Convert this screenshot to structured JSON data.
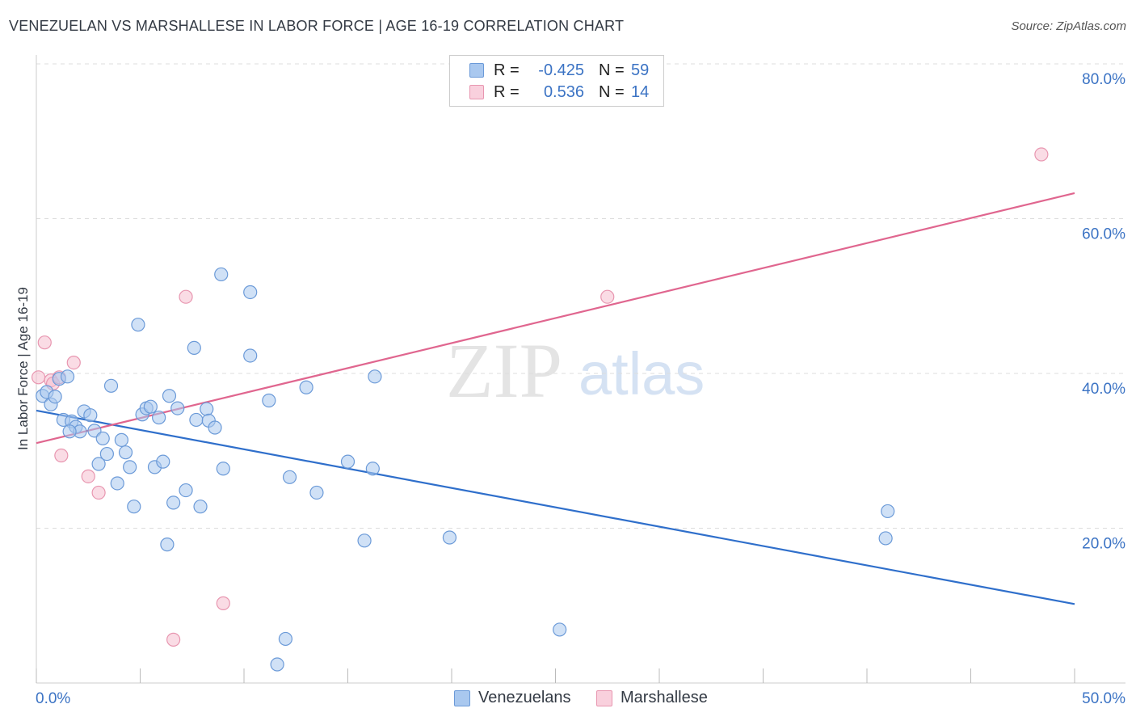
{
  "title": "VENEZUELAN VS MARSHALLESE IN LABOR FORCE | AGE 16-19 CORRELATION CHART",
  "source": "Source: ZipAtlas.com",
  "watermark": {
    "zip": "ZIP",
    "atlas": "atlas"
  },
  "legend": {
    "rows": [
      {
        "r_label": "R =",
        "r_value": "-0.425",
        "n_label": "N =",
        "n_value": "59"
      },
      {
        "r_label": "R =",
        "r_value": "0.536",
        "n_label": "N =",
        "n_value": "14"
      }
    ]
  },
  "bottom_legend": [
    "Venezuelans",
    "Marshallese"
  ],
  "colors": {
    "blue_fill": "#a9c8ef",
    "blue_stroke": "#6b9ad8",
    "blue_line": "#2f6fcb",
    "pink_fill": "#f6bfd0",
    "pink_stroke": "#e896b0",
    "pink_line": "#e0668f",
    "grid": "#dddddd",
    "axis_text": "#3b73c4"
  },
  "chart_data": {
    "type": "scatter",
    "title": "VENEZUELAN VS MARSHALLESE IN LABOR FORCE | AGE 16-19 CORRELATION CHART",
    "xlabel": "",
    "ylabel": "In Labor Force | Age 16-19",
    "xlim": [
      0,
      50
    ],
    "ylim": [
      0,
      80
    ],
    "x_tick_labels": [
      {
        "value": 0,
        "label": "0.0%"
      },
      {
        "value": 50,
        "label": "50.0%"
      }
    ],
    "y_tick_labels": [
      {
        "value": 20,
        "label": "20.0%"
      },
      {
        "value": 40,
        "label": "40.0%"
      },
      {
        "value": 60,
        "label": "60.0%"
      },
      {
        "value": 80,
        "label": "80.0%"
      }
    ],
    "series": [
      {
        "name": "Venezuelans",
        "r": -0.425,
        "n": 59,
        "points": [
          [
            0.3,
            37.1
          ],
          [
            0.5,
            37.6
          ],
          [
            0.7,
            36.0
          ],
          [
            0.9,
            37.0
          ],
          [
            1.1,
            39.3
          ],
          [
            1.3,
            34.0
          ],
          [
            1.5,
            39.6
          ],
          [
            1.7,
            33.8
          ],
          [
            1.9,
            33.1
          ],
          [
            2.1,
            32.5
          ],
          [
            2.3,
            35.1
          ],
          [
            2.6,
            34.6
          ],
          [
            2.8,
            32.6
          ],
          [
            3.0,
            28.3
          ],
          [
            3.2,
            31.6
          ],
          [
            3.4,
            29.6
          ],
          [
            3.6,
            38.4
          ],
          [
            3.9,
            25.8
          ],
          [
            4.1,
            31.4
          ],
          [
            4.3,
            29.8
          ],
          [
            4.5,
            27.9
          ],
          [
            4.7,
            22.8
          ],
          [
            4.9,
            46.3
          ],
          [
            5.1,
            34.7
          ],
          [
            5.3,
            35.5
          ],
          [
            5.5,
            35.7
          ],
          [
            5.7,
            27.9
          ],
          [
            5.9,
            34.3
          ],
          [
            6.1,
            28.6
          ],
          [
            6.3,
            17.9
          ],
          [
            6.4,
            37.1
          ],
          [
            6.6,
            23.3
          ],
          [
            6.8,
            35.5
          ],
          [
            7.2,
            24.9
          ],
          [
            7.6,
            43.3
          ],
          [
            7.7,
            34.0
          ],
          [
            7.9,
            22.8
          ],
          [
            8.2,
            35.4
          ],
          [
            8.3,
            33.9
          ],
          [
            8.6,
            33.0
          ],
          [
            8.9,
            52.8
          ],
          [
            9.0,
            27.7
          ],
          [
            10.3,
            50.5
          ],
          [
            10.3,
            42.3
          ],
          [
            11.2,
            36.5
          ],
          [
            12.0,
            5.7
          ],
          [
            12.2,
            26.6
          ],
          [
            13.0,
            38.2
          ],
          [
            13.5,
            24.6
          ],
          [
            15.0,
            28.6
          ],
          [
            15.8,
            18.4
          ],
          [
            16.2,
            27.7
          ],
          [
            16.3,
            39.6
          ],
          [
            19.9,
            18.8
          ],
          [
            25.2,
            6.9
          ],
          [
            11.6,
            2.4
          ],
          [
            1.6,
            32.5
          ],
          [
            41.0,
            22.2
          ],
          [
            40.9,
            18.7
          ]
        ],
        "trend": {
          "x0": 0,
          "y0": 35.2,
          "x1": 50,
          "y1": 10.2
        }
      },
      {
        "name": "Marshallese",
        "r": 0.536,
        "n": 14,
        "points": [
          [
            0.1,
            39.5
          ],
          [
            0.4,
            44.0
          ],
          [
            0.7,
            39.1
          ],
          [
            0.8,
            38.7
          ],
          [
            1.1,
            39.5
          ],
          [
            1.2,
            29.4
          ],
          [
            1.8,
            41.4
          ],
          [
            2.5,
            26.7
          ],
          [
            3.0,
            24.6
          ],
          [
            6.6,
            5.6
          ],
          [
            7.2,
            49.9
          ],
          [
            9.0,
            10.3
          ],
          [
            27.5,
            49.9
          ],
          [
            48.4,
            68.3
          ]
        ],
        "trend": {
          "x0": 0,
          "y0": 31.0,
          "x1": 50,
          "y1": 63.3
        }
      }
    ]
  }
}
